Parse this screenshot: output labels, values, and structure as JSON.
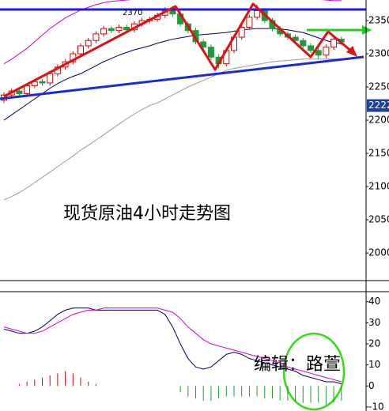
{
  "chart_data": [
    {
      "type": "candlestick",
      "title": "现货原油4小时走势图",
      "annotation": "2370",
      "price_tag": 2222,
      "up_color": "#e00000",
      "down_color": "#1e9a3a",
      "open": [
        2230,
        2238,
        2244,
        2240,
        2252,
        2258,
        2256,
        2270,
        2280,
        2288,
        2300,
        2312,
        2320,
        2330,
        2338,
        2335,
        2340,
        2336,
        2345,
        2350,
        2352,
        2358,
        2365,
        2360,
        2345,
        2335,
        2318,
        2310,
        2295,
        2285,
        2305,
        2325,
        2340,
        2355,
        2365,
        2350,
        2338,
        2330,
        2325,
        2320,
        2312,
        2305,
        2298,
        2310,
        2322
      ],
      "high": [
        2242,
        2248,
        2248,
        2256,
        2262,
        2262,
        2274,
        2284,
        2292,
        2304,
        2316,
        2324,
        2334,
        2342,
        2342,
        2344,
        2344,
        2349,
        2354,
        2356,
        2362,
        2370,
        2372,
        2364,
        2349,
        2339,
        2322,
        2314,
        2299,
        2309,
        2329,
        2344,
        2359,
        2374,
        2369,
        2354,
        2342,
        2334,
        2329,
        2324,
        2316,
        2309,
        2314,
        2326,
        2326
      ],
      "low": [
        2226,
        2234,
        2236,
        2236,
        2248,
        2252,
        2252,
        2266,
        2276,
        2284,
        2296,
        2308,
        2316,
        2326,
        2331,
        2331,
        2332,
        2332,
        2341,
        2346,
        2348,
        2354,
        2356,
        2341,
        2331,
        2314,
        2306,
        2291,
        2278,
        2281,
        2301,
        2321,
        2336,
        2351,
        2346,
        2334,
        2326,
        2321,
        2316,
        2308,
        2301,
        2292,
        2294,
        2306,
        2314
      ],
      "close": [
        2238,
        2244,
        2240,
        2252,
        2258,
        2256,
        2270,
        2280,
        2288,
        2300,
        2312,
        2320,
        2330,
        2338,
        2335,
        2340,
        2336,
        2345,
        2350,
        2352,
        2358,
        2365,
        2360,
        2345,
        2335,
        2318,
        2310,
        2295,
        2285,
        2305,
        2325,
        2340,
        2355,
        2365,
        2350,
        2338,
        2330,
        2325,
        2320,
        2312,
        2305,
        2298,
        2310,
        2322,
        2318
      ],
      "lines": [
        {
          "color": "#cc00cc",
          "values": [
            2285,
            2292,
            2300,
            2308,
            2318,
            2328,
            2338,
            2346,
            2354,
            2360,
            2366,
            2370,
            2374,
            2377,
            2379,
            2380,
            2381,
            2382,
            2383,
            2384,
            2385,
            2386,
            2387,
            2388,
            2388,
            2388,
            2387,
            2386,
            2385,
            2385,
            2385,
            2385,
            2386,
            2387,
            2388,
            2388,
            2387,
            2386,
            2385,
            2384,
            2383,
            2382,
            2381,
            2380,
            2380
          ]
        },
        {
          "color": "#000066",
          "values": [
            2200,
            2208,
            2216,
            2224,
            2232,
            2240,
            2248,
            2255,
            2261,
            2266,
            2270,
            2276,
            2282,
            2288,
            2293,
            2298,
            2302,
            2306,
            2309,
            2312,
            2316,
            2319,
            2322,
            2324,
            2326,
            2328,
            2329,
            2330,
            2331,
            2332,
            2334,
            2336,
            2337,
            2338,
            2338,
            2338,
            2337,
            2336,
            2334,
            2332,
            2328,
            2324,
            2320,
            2317,
            2315
          ]
        },
        {
          "color": "#999999",
          "values": [
            2080,
            2085,
            2091,
            2098,
            2106,
            2114,
            2122,
            2130,
            2138,
            2146,
            2155,
            2162,
            2170,
            2178,
            2186,
            2194,
            2202,
            2209,
            2216,
            2222,
            2226,
            2232,
            2238,
            2244,
            2250,
            2255,
            2260,
            2265,
            2270,
            2275,
            2278,
            2280,
            2282,
            2284,
            2286,
            2288,
            2289,
            2290,
            2291,
            2292,
            2292,
            2292,
            2292,
            2292,
            2292
          ]
        }
      ],
      "ylim": [
        1962,
        2381
      ],
      "yticks": [
        2000,
        2050,
        2100,
        2150,
        2200,
        2250,
        2300,
        2350
      ]
    },
    {
      "type": "macd",
      "note": "编辑：路萱",
      "series": [
        {
          "color": "#000066",
          "values": [
            27,
            26,
            25,
            25,
            26,
            28,
            31,
            34,
            36,
            37,
            37,
            37,
            36,
            36,
            36,
            36,
            36,
            36,
            36,
            36,
            36,
            34,
            28,
            20,
            13,
            9,
            8,
            9,
            12,
            15,
            16,
            15,
            13,
            12,
            11,
            10,
            9,
            8,
            7,
            5,
            4,
            3,
            2,
            2,
            1
          ]
        },
        {
          "color": "#cc00cc",
          "values": [
            28,
            27,
            26,
            25,
            25,
            26,
            28,
            30,
            32,
            34,
            35,
            36,
            36,
            37,
            37,
            37,
            37,
            37,
            37,
            37,
            37,
            36,
            35,
            32,
            28,
            25,
            22,
            20,
            19,
            18,
            17,
            16,
            15,
            14,
            13,
            12,
            11,
            9,
            8,
            7,
            6,
            5,
            4,
            3,
            2
          ]
        }
      ],
      "histogram": {
        "up_color": "#e00000",
        "down_color": "#1e9a3a",
        "values": [
          0,
          0,
          1,
          2,
          3,
          4,
          5,
          6,
          7,
          6,
          4,
          2,
          1,
          0,
          0,
          0,
          0,
          0,
          0,
          0,
          0,
          0,
          0,
          -3,
          -5,
          -6,
          -7,
          -7,
          -6,
          -5,
          -5,
          -5,
          -5,
          -5,
          -6,
          -6,
          -7,
          -7,
          -7,
          -8,
          -8,
          -8,
          -9,
          -8,
          -7
        ]
      },
      "ylim": [
        -11.9,
        44.4
      ],
      "yticks": [
        -10,
        0,
        10,
        20,
        30,
        40
      ]
    }
  ]
}
